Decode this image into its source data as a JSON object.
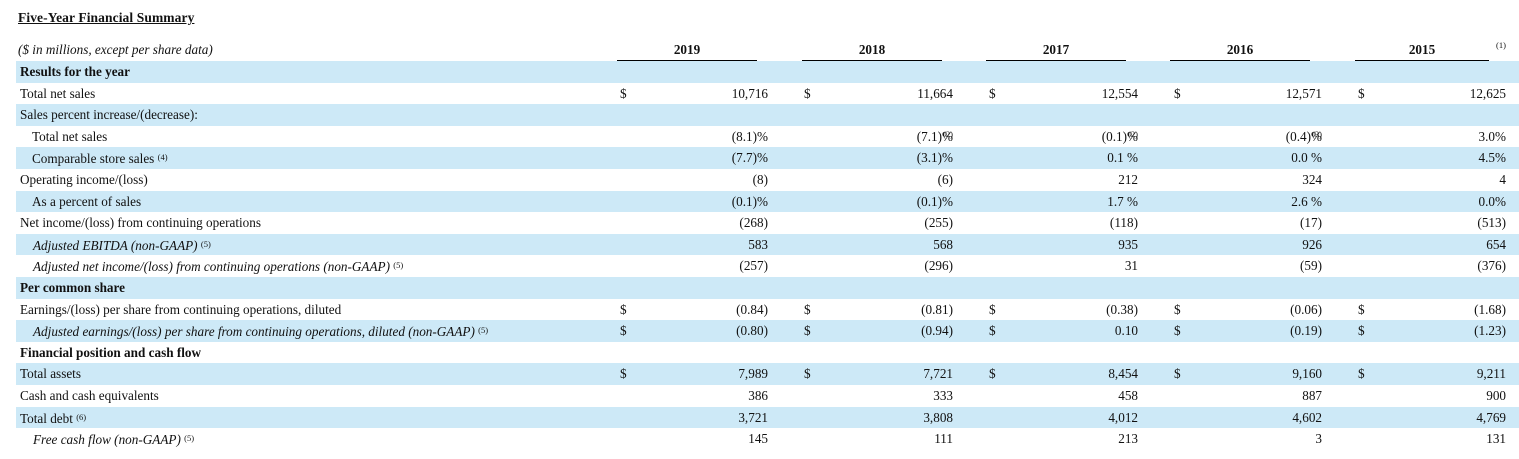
{
  "title": "Five-Year Financial Summary",
  "header_note": "($ in millions, except per share data)",
  "years": [
    "2019",
    "2018",
    "2017",
    "2016",
    "2015"
  ],
  "year_footnote": "(1)",
  "rows": [
    {
      "label": "Results for the year",
      "style": "section",
      "shade": true,
      "values": [
        "",
        "",
        "",
        "",
        ""
      ],
      "dollar": false,
      "marks": [
        "",
        "",
        "",
        "",
        ""
      ]
    },
    {
      "label": "Total net sales",
      "style": "normal",
      "shade": false,
      "values": [
        "10,716",
        "11,664",
        "12,554",
        "12,571",
        "12,625"
      ],
      "dollar": true,
      "marks": [
        "",
        "",
        "",
        "",
        ""
      ]
    },
    {
      "label": "Sales percent increase/(decrease):",
      "style": "normal",
      "shade": true,
      "values": [
        "",
        "",
        "",
        "",
        ""
      ],
      "dollar": false,
      "marks": [
        "",
        "",
        "",
        "",
        ""
      ]
    },
    {
      "label": "Total net sales",
      "style": "indent",
      "shade": false,
      "values": [
        "(8.1)%",
        "(7.1)%",
        "(0.1)%",
        "(0.4)%",
        "3.0%"
      ],
      "dollar": false,
      "marks": [
        "",
        "(2)",
        "(2)",
        "(3)",
        ""
      ]
    },
    {
      "label": "Comparable store sales",
      "label_mark": "(4)",
      "style": "indent",
      "shade": true,
      "values": [
        "(7.7)%",
        "(3.1)%",
        "0.1 %",
        "0.0 %",
        "4.5%"
      ],
      "dollar": false,
      "marks": [
        "",
        "",
        "",
        "",
        ""
      ]
    },
    {
      "label": "Operating income/(loss)",
      "style": "normal",
      "shade": false,
      "values": [
        "(8)",
        "(6)",
        "212",
        "324",
        "4"
      ],
      "dollar": false,
      "marks": [
        "",
        "",
        "",
        "",
        ""
      ]
    },
    {
      "label": "As a percent of sales",
      "style": "indent",
      "shade": true,
      "values": [
        "(0.1)%",
        "(0.1)%",
        "1.7 %",
        "2.6 %",
        "0.0%"
      ],
      "dollar": false,
      "marks": [
        "",
        "",
        "",
        "",
        ""
      ]
    },
    {
      "label": "Net income/(loss) from continuing operations",
      "style": "normal",
      "shade": false,
      "values": [
        "(268)",
        "(255)",
        "(118)",
        "(17)",
        "(513)"
      ],
      "dollar": false,
      "marks": [
        "",
        "",
        "",
        "",
        ""
      ]
    },
    {
      "label": "Adjusted EBITDA (non-GAAP)",
      "label_mark": "(5)",
      "style": "italic",
      "shade": true,
      "values": [
        "583",
        "568",
        "935",
        "926",
        "654"
      ],
      "dollar": false,
      "marks": [
        "",
        "",
        "",
        "",
        ""
      ]
    },
    {
      "label": "Adjusted net income/(loss) from continuing operations (non-GAAP)",
      "label_mark": "(5)",
      "style": "italic",
      "shade": false,
      "values": [
        "(257)",
        "(296)",
        "31",
        "(59)",
        "(376)"
      ],
      "dollar": false,
      "marks": [
        "",
        "",
        "",
        "",
        ""
      ]
    },
    {
      "label": "Per common share",
      "style": "section",
      "shade": true,
      "values": [
        "",
        "",
        "",
        "",
        ""
      ],
      "dollar": false,
      "marks": [
        "",
        "",
        "",
        "",
        ""
      ]
    },
    {
      "label": "Earnings/(loss) per share from continuing operations, diluted",
      "style": "normal",
      "shade": false,
      "values": [
        "(0.84)",
        "(0.81)",
        "(0.38)",
        "(0.06)",
        "(1.68)"
      ],
      "dollar": true,
      "marks": [
        "",
        "",
        "",
        "",
        ""
      ]
    },
    {
      "label": "Adjusted earnings/(loss) per share from continuing operations, diluted (non-GAAP)",
      "label_mark": "(5)",
      "style": "italic",
      "shade": true,
      "values": [
        "(0.80)",
        "(0.94)",
        "0.10",
        "(0.19)",
        "(1.23)"
      ],
      "dollar": true,
      "marks": [
        "",
        "",
        "",
        "",
        ""
      ]
    },
    {
      "label": "Financial position and cash flow",
      "style": "section",
      "shade": false,
      "values": [
        "",
        "",
        "",
        "",
        ""
      ],
      "dollar": false,
      "marks": [
        "",
        "",
        "",
        "",
        ""
      ]
    },
    {
      "label": "Total assets",
      "style": "normal",
      "shade": true,
      "values": [
        "7,989",
        "7,721",
        "8,454",
        "9,160",
        "9,211"
      ],
      "dollar": true,
      "marks": [
        "",
        "",
        "",
        "",
        ""
      ]
    },
    {
      "label": "Cash and cash equivalents",
      "style": "normal",
      "shade": false,
      "values": [
        "386",
        "333",
        "458",
        "887",
        "900"
      ],
      "dollar": false,
      "marks": [
        "",
        "",
        "",
        "",
        ""
      ]
    },
    {
      "label": "Total debt",
      "label_mark": "(6)",
      "style": "normal",
      "shade": true,
      "values": [
        "3,721",
        "3,808",
        "4,012",
        "4,602",
        "4,769"
      ],
      "dollar": false,
      "marks": [
        "",
        "",
        "",
        "",
        ""
      ]
    },
    {
      "label": "Free cash flow (non-GAAP)",
      "label_mark": "(5)",
      "style": "italic",
      "shade": false,
      "values": [
        "145",
        "111",
        "213",
        "3",
        "131"
      ],
      "dollar": false,
      "marks": [
        "",
        "",
        "",
        "",
        ""
      ]
    }
  ],
  "dollar_sign": "$"
}
